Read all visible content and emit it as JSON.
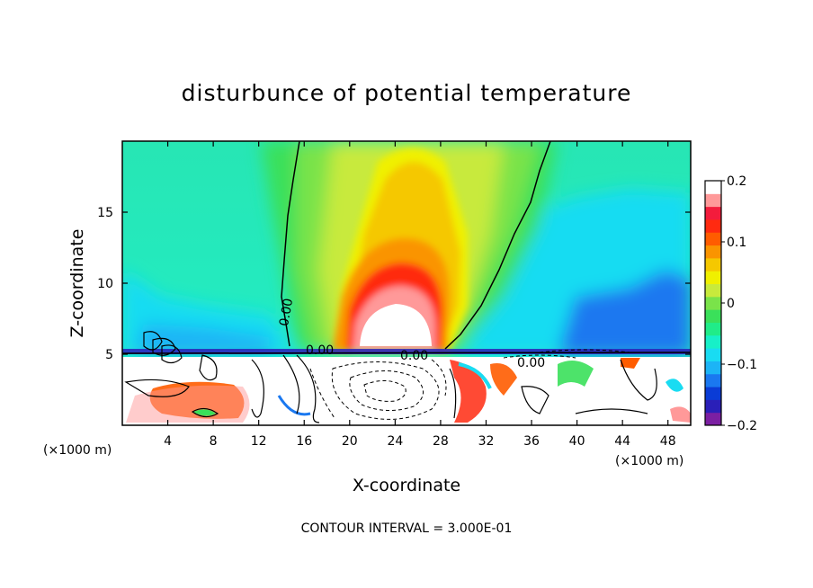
{
  "chart_data": {
    "type": "heatmap",
    "title": "disturbunce of potential temperature",
    "xlabel": "X-coordinate",
    "ylabel": "Z-coordinate",
    "x_unit_left": "(×1000 m)",
    "x_unit_right": "(×1000 m)",
    "xlim": [
      0,
      50
    ],
    "ylim": [
      0,
      20
    ],
    "xticks": [
      4,
      8,
      12,
      16,
      20,
      24,
      28,
      32,
      36,
      40,
      44,
      48
    ],
    "yticks": [
      5,
      10,
      15
    ],
    "colorbar": {
      "range": [
        -0.2,
        0.2
      ],
      "ticks": [
        0.2,
        0.1,
        0,
        -0.1,
        -0.2
      ],
      "tick_labels": [
        "0.2",
        "0.1",
        "0",
        "−0.1",
        "−0.2"
      ],
      "colors": [
        "#7b1fa2",
        "#2a1fb8",
        "#0a3cd6",
        "#1a78f0",
        "#1cb4f6",
        "#19dcf2",
        "#17f0c8",
        "#20ec88",
        "#3ae05a",
        "#7ae34a",
        "#c8ea3c",
        "#f0f000",
        "#f5c800",
        "#fa9400",
        "#ff5c00",
        "#ff2a10",
        "#f31c3c",
        "#ff9999",
        "#ffffff"
      ]
    },
    "contour_label": "0.00",
    "footer": "CONTOUR INTERVAL = 3.000E-01"
  }
}
